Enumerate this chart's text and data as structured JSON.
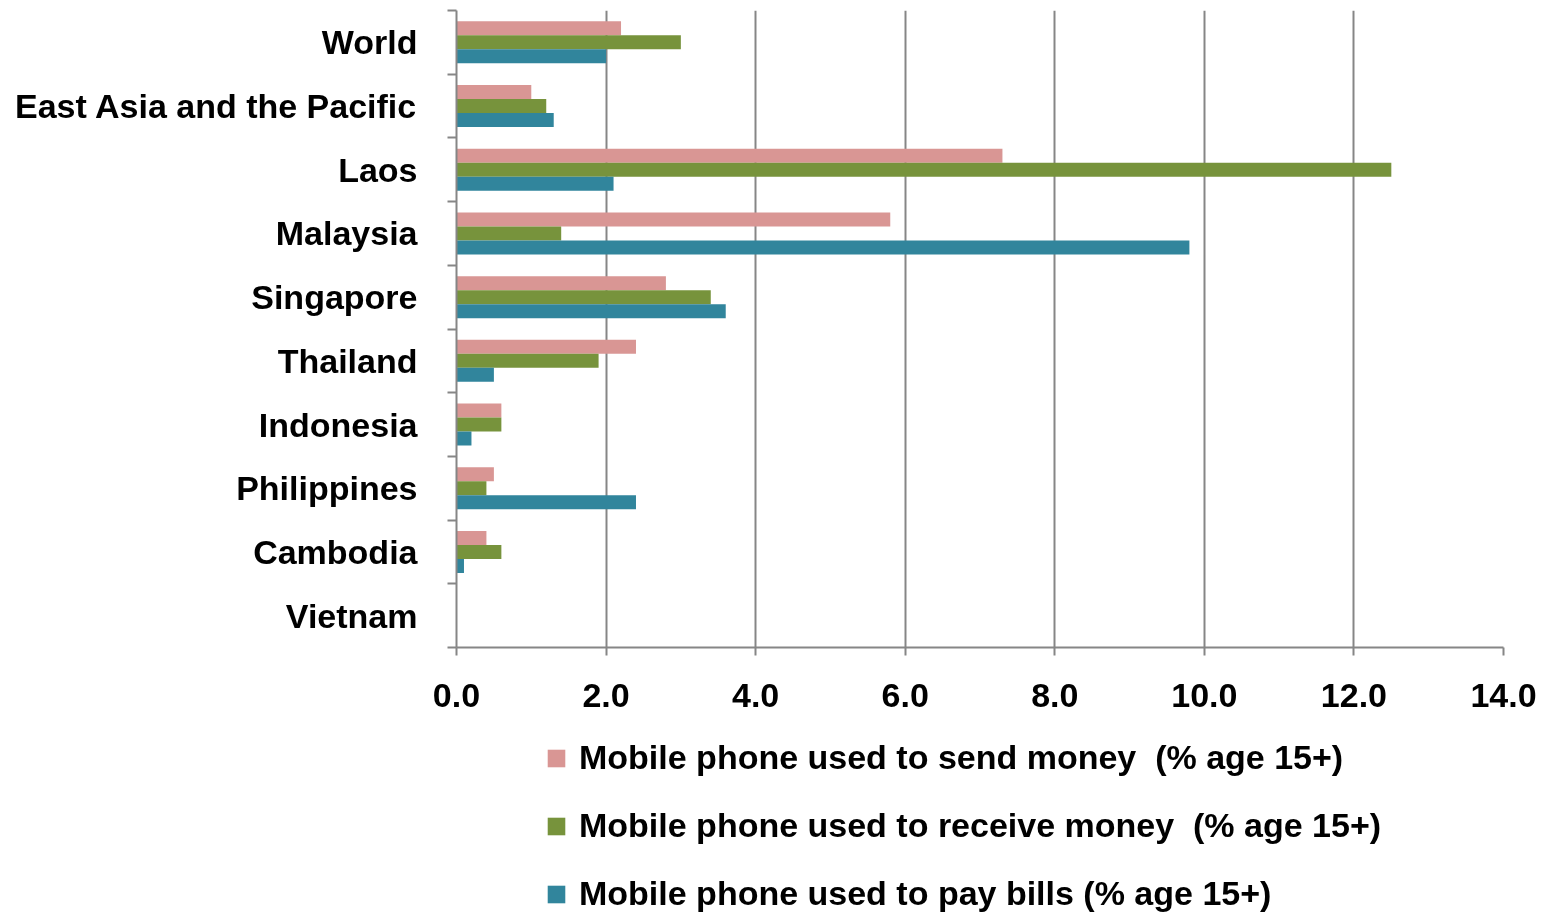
{
  "chart_data": {
    "type": "bar",
    "orientation": "horizontal",
    "categories": [
      "World",
      "East Asia and the Pacific",
      "Laos",
      "Malaysia",
      "Singapore",
      "Thailand",
      "Indonesia",
      "Philippines",
      "Cambodia",
      "Vietnam"
    ],
    "series": [
      {
        "name": "Mobile phone used to send money  (% age 15+)",
        "color": "#d99694",
        "values": [
          2.2,
          1.0,
          7.3,
          5.8,
          2.8,
          2.4,
          0.6,
          0.5,
          0.4,
          null
        ]
      },
      {
        "name": "Mobile phone used to receive money  (% age 15+)",
        "color": "#77933c",
        "values": [
          3.0,
          1.2,
          12.5,
          1.4,
          3.4,
          1.9,
          0.6,
          0.4,
          0.6,
          null
        ]
      },
      {
        "name": "Mobile phone used to pay bills (% age 15+)",
        "color": "#31859c",
        "values": [
          2.0,
          1.3,
          2.1,
          9.8,
          3.6,
          0.5,
          0.2,
          2.4,
          0.1,
          null
        ]
      }
    ],
    "xlim": [
      0,
      14
    ],
    "xticks": [
      {
        "value": 0,
        "label": "0.0"
      },
      {
        "value": 2,
        "label": "2.0"
      },
      {
        "value": 4,
        "label": "4.0"
      },
      {
        "value": 6,
        "label": "6.0"
      },
      {
        "value": 8,
        "label": "8.0"
      },
      {
        "value": 10,
        "label": "10.0"
      },
      {
        "value": 12,
        "label": "12.0"
      },
      {
        "value": 14,
        "label": "14.0"
      }
    ],
    "grid": "x",
    "legend": "bottom"
  }
}
